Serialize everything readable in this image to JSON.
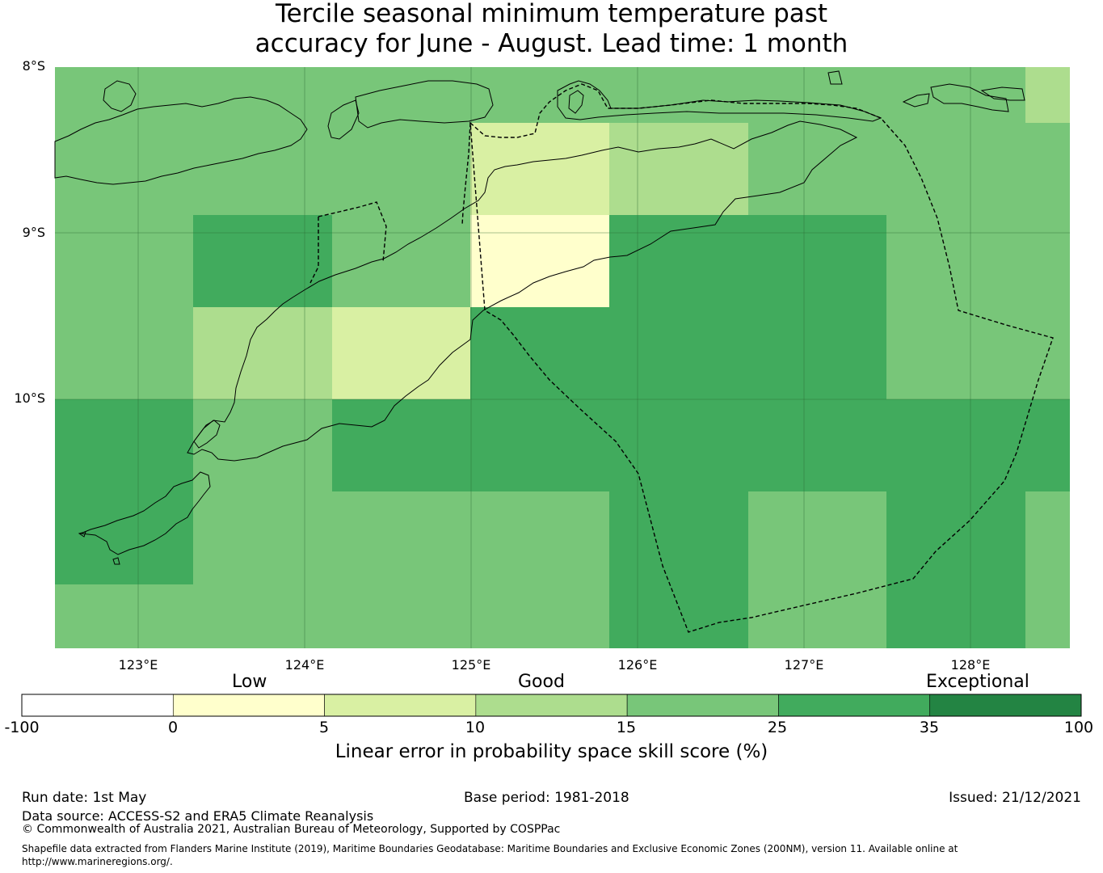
{
  "title": {
    "line1": "Tercile seasonal minimum temperature past",
    "line2": "accuracy for June - August. Lead time: 1 month"
  },
  "map": {
    "lat_labels": [
      "8°S",
      "9°S",
      "10°S"
    ],
    "lon_labels": [
      "123°E",
      "124°E",
      "125°E",
      "126°E",
      "127°E",
      "128°E"
    ],
    "extent": {
      "lon_min": 122.5,
      "lon_max": 128.6,
      "lat_top": -8.0,
      "lat_bottom": -11.5
    },
    "cell_size_deg": 0.833,
    "palette": {
      "0-5": "#ffffcc",
      "5-10": "#d9f0a3",
      "10-15": "#addd8e",
      "15-25": "#78c679",
      "25-35": "#41ab5d",
      "35-100": "#238443"
    }
  },
  "colorbar": {
    "category_labels": [
      "Low",
      "Good",
      "Exceptional"
    ],
    "ticks": [
      "-100",
      "0",
      "5",
      "10",
      "15",
      "25",
      "35",
      "100"
    ],
    "colors": [
      "#ffffff",
      "#ffffcc",
      "#d9f0a3",
      "#addd8e",
      "#78c679",
      "#41ab5d",
      "#238443"
    ],
    "label": "Linear error in probability space skill score (%)"
  },
  "footer": {
    "run_date": "Run date: 1st May",
    "base_period": "Base period: 1981-2018",
    "issued": "Issued: 21/12/2021",
    "data_source": "Data source: ACCESS-S2 and ERA5 Climate Reanalysis",
    "copyright": "© Commonwealth of Australia 2021, Australian Bureau of Meteorology, Supported by COSPPac",
    "shapefile_line1": "Shapefile data extracted from Flanders Marine Institute (2019), Maritime Boundaries Geodatabase: Maritime Boundaries and Exclusive Economic Zones (200NM), version 11. Available online at",
    "shapefile_line2": "http://www.marineregions.org/."
  }
}
